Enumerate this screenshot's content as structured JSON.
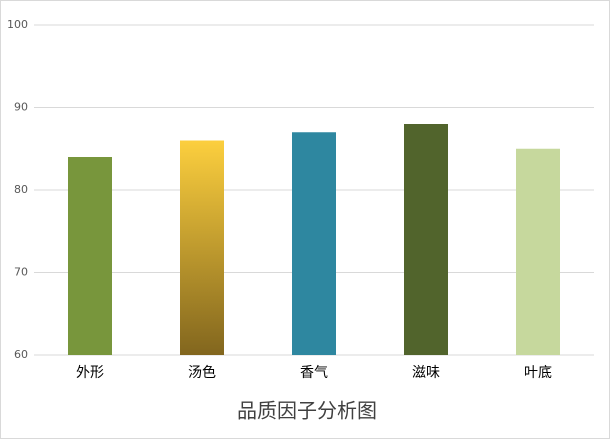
{
  "chart_data": {
    "type": "bar",
    "title": "品质因子分析图",
    "categories": [
      "外形",
      "汤色",
      "香气",
      "滋味",
      "叶底"
    ],
    "values": [
      84,
      86,
      87,
      88,
      85
    ],
    "colors": [
      "#78963c",
      [
        "#fccf3e",
        "#82661e"
      ],
      "#2e87a0",
      "#51642c",
      "#c6d89d"
    ],
    "ylim": [
      60,
      100
    ],
    "yticks": [
      60,
      70,
      80,
      90,
      100
    ],
    "grid": true
  }
}
